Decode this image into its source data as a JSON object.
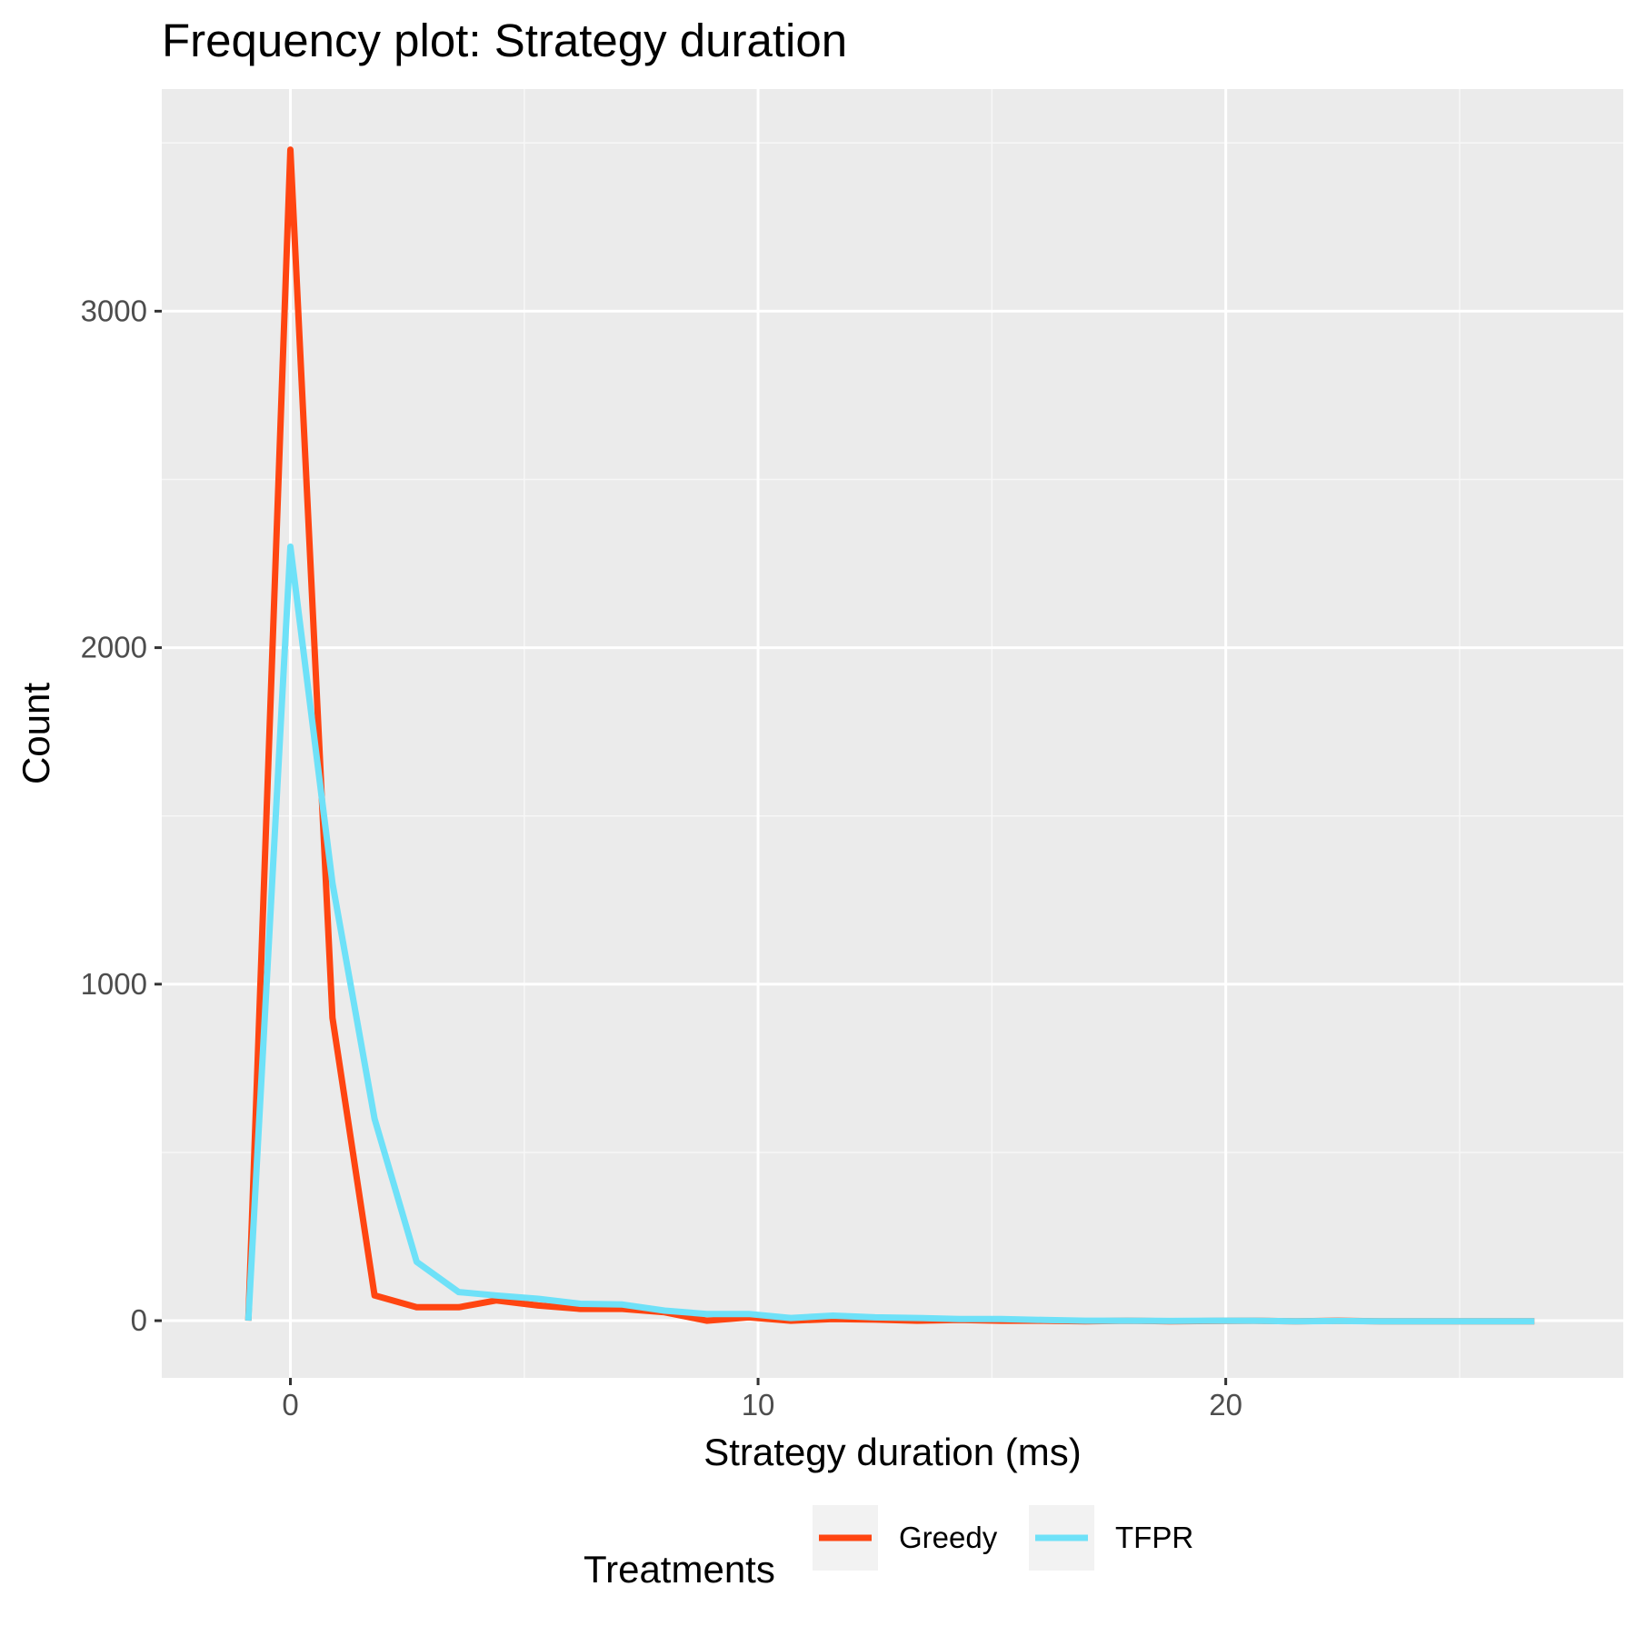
{
  "chart_data": {
    "type": "line",
    "title": "Frequency plot: Strategy duration",
    "xlabel": "Strategy duration (ms)",
    "ylabel": "Count",
    "xlim": [
      -2.75,
      28.5
    ],
    "ylim": [
      -170,
      3660
    ],
    "xticks": [
      0,
      10,
      20
    ],
    "yticks": [
      0,
      1000,
      2000,
      3000
    ],
    "grid": true,
    "legend": {
      "title": "Treatments",
      "position": "bottom"
    },
    "series": [
      {
        "name": "Greedy",
        "color": "#ff4511",
        "points": [
          [
            -0.9,
            0
          ],
          [
            0,
            3480
          ],
          [
            0.9,
            900
          ],
          [
            1.8,
            75
          ],
          [
            2.7,
            40
          ],
          [
            3.6,
            40
          ],
          [
            4.4,
            60
          ],
          [
            5.3,
            45
          ],
          [
            6.2,
            35
          ],
          [
            7.1,
            35
          ],
          [
            8.0,
            25
          ],
          [
            8.9,
            0
          ],
          [
            9.8,
            10
          ],
          [
            10.7,
            0
          ],
          [
            11.6,
            5
          ],
          [
            12.5,
            3
          ],
          [
            13.4,
            0
          ],
          [
            14.3,
            2
          ],
          [
            15.2,
            0
          ],
          [
            16.1,
            0
          ],
          [
            17.0,
            -2
          ],
          [
            17.9,
            0
          ],
          [
            18.8,
            -2
          ],
          [
            19.7,
            -1
          ],
          [
            20.6,
            0
          ],
          [
            21.5,
            -2
          ],
          [
            22.4,
            0
          ],
          [
            23.3,
            -2
          ],
          [
            24.2,
            -2
          ],
          [
            25.1,
            -2
          ],
          [
            26.0,
            -2
          ],
          [
            26.6,
            -2
          ]
        ]
      },
      {
        "name": "TFPR",
        "color": "#6ee1f8",
        "points": [
          [
            -0.9,
            0
          ],
          [
            0,
            2300
          ],
          [
            0.9,
            1300
          ],
          [
            1.8,
            600
          ],
          [
            2.7,
            175
          ],
          [
            3.6,
            85
          ],
          [
            4.4,
            75
          ],
          [
            5.3,
            65
          ],
          [
            6.2,
            50
          ],
          [
            7.1,
            48
          ],
          [
            8.0,
            30
          ],
          [
            8.9,
            20
          ],
          [
            9.8,
            20
          ],
          [
            10.7,
            8
          ],
          [
            11.6,
            15
          ],
          [
            12.5,
            10
          ],
          [
            13.4,
            8
          ],
          [
            14.3,
            5
          ],
          [
            15.2,
            5
          ],
          [
            16.1,
            2
          ],
          [
            17.0,
            0
          ],
          [
            17.9,
            0
          ],
          [
            18.8,
            -1
          ],
          [
            19.7,
            0
          ],
          [
            20.6,
            0
          ],
          [
            21.5,
            -2
          ],
          [
            22.4,
            -1
          ],
          [
            23.3,
            -2
          ],
          [
            24.2,
            -2
          ],
          [
            25.1,
            -2
          ],
          [
            26.0,
            -2
          ],
          [
            26.6,
            -2
          ]
        ]
      }
    ]
  },
  "colors": {
    "panel_background": "#ebebeb",
    "grid_major": "#ffffff",
    "grid_minor": "#f7f7f7",
    "legend_key_background": "#f2f2f2"
  }
}
